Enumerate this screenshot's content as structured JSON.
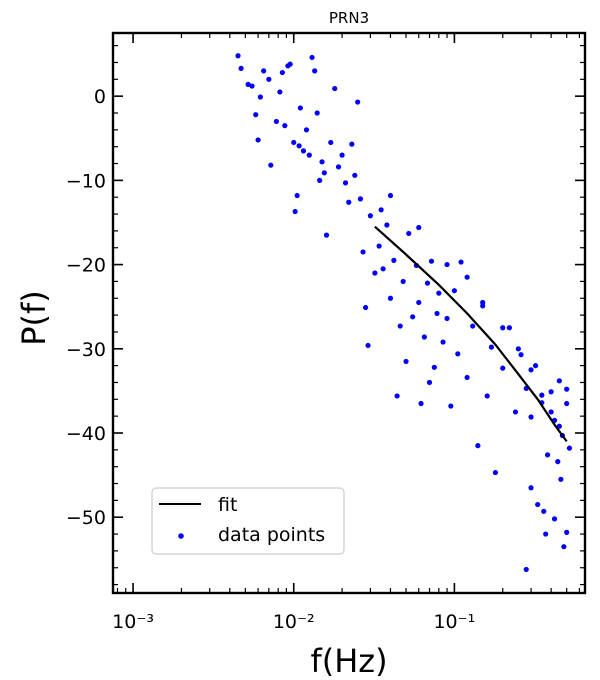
{
  "chart_data": {
    "type": "scatter",
    "title": "PRN3",
    "xlabel": "f(Hz)",
    "ylabel": "P(f)",
    "x_scale": "log",
    "xlim": [
      0.00075,
      0.65
    ],
    "ylim": [
      -59,
      7.5
    ],
    "x_ticks": [
      {
        "value": 0.001,
        "label": "10⁻³"
      },
      {
        "value": 0.01,
        "label": "10⁻²"
      },
      {
        "value": 0.1,
        "label": "10⁻¹"
      }
    ],
    "y_ticks": [
      {
        "value": 0,
        "label": "0"
      },
      {
        "value": -10,
        "label": "−10"
      },
      {
        "value": -20,
        "label": "−20"
      },
      {
        "value": -30,
        "label": "−30"
      },
      {
        "value": -40,
        "label": "−40"
      },
      {
        "value": -50,
        "label": "−50"
      }
    ],
    "legend": {
      "placement": "lower-left",
      "entries": [
        {
          "label": "fit",
          "kind": "line",
          "color": "#000000"
        },
        {
          "label": "data points",
          "kind": "marker",
          "color": "#0000ff"
        }
      ]
    },
    "series": [
      {
        "name": "fit",
        "kind": "line",
        "color": "#000000",
        "x": [
          0.032,
          0.05,
          0.08,
          0.12,
          0.18,
          0.25,
          0.33,
          0.42,
          0.5
        ],
        "y": [
          -15.5,
          -18.8,
          -22.4,
          -25.8,
          -29.5,
          -33.0,
          -36.0,
          -39.0,
          -41.0
        ]
      },
      {
        "name": "data points",
        "kind": "scatter",
        "color": "#0000ff",
        "x": [
          0.0045,
          0.0047,
          0.0052,
          0.0055,
          0.0058,
          0.006,
          0.0062,
          0.0065,
          0.007,
          0.0072,
          0.0078,
          0.0082,
          0.0085,
          0.0088,
          0.0092,
          0.0095,
          0.01,
          0.0102,
          0.0105,
          0.0108,
          0.011,
          0.0115,
          0.012,
          0.0125,
          0.013,
          0.0135,
          0.014,
          0.0145,
          0.015,
          0.0155,
          0.016,
          0.017,
          0.018,
          0.019,
          0.02,
          0.021,
          0.022,
          0.023,
          0.024,
          0.025,
          0.026,
          0.027,
          0.028,
          0.029,
          0.03,
          0.032,
          0.034,
          0.035,
          0.036,
          0.038,
          0.04,
          0.042,
          0.044,
          0.046,
          0.048,
          0.05,
          0.052,
          0.055,
          0.058,
          0.06,
          0.062,
          0.065,
          0.068,
          0.07,
          0.072,
          0.075,
          0.078,
          0.08,
          0.085,
          0.09,
          0.095,
          0.1,
          0.105,
          0.11,
          0.12,
          0.13,
          0.14,
          0.15,
          0.16,
          0.17,
          0.18,
          0.2,
          0.22,
          0.24,
          0.26,
          0.28,
          0.3,
          0.32,
          0.35,
          0.38,
          0.4,
          0.42,
          0.45,
          0.47,
          0.5,
          0.52,
          0.04,
          0.06,
          0.09,
          0.12,
          0.15,
          0.2,
          0.25,
          0.3,
          0.35,
          0.4,
          0.45,
          0.5,
          0.3,
          0.33,
          0.37,
          0.42,
          0.46,
          0.5,
          0.28,
          0.36,
          0.44,
          0.48
        ],
        "y": [
          4.8,
          3.3,
          1.4,
          1.2,
          -2.2,
          -5.2,
          -0.1,
          3.0,
          2.0,
          -8.2,
          -3.0,
          0.5,
          2.8,
          -3.5,
          3.6,
          3.8,
          -5.5,
          -13.7,
          -11.8,
          -5.9,
          -1.4,
          -6.5,
          -4.0,
          -7.0,
          4.6,
          3.0,
          -2.0,
          -10.0,
          -7.8,
          -9.1,
          -16.5,
          -5.5,
          0.9,
          -8.4,
          -7.0,
          -10.3,
          -12.6,
          -5.7,
          -9.4,
          -0.7,
          -12.2,
          -18.5,
          -25.1,
          -29.6,
          -14.2,
          -21.0,
          -17.8,
          -13.5,
          -20.5,
          -15.3,
          -24.0,
          -19.5,
          -35.6,
          -27.3,
          -22.0,
          -31.5,
          -16.3,
          -26.2,
          -20.1,
          -24.5,
          -36.5,
          -28.6,
          -22.2,
          -34.0,
          -19.6,
          -32.2,
          -25.8,
          -23.4,
          -29.2,
          -26.4,
          -36.8,
          -23.1,
          -30.6,
          -19.7,
          -33.4,
          -27.3,
          -41.5,
          -24.9,
          -35.6,
          -29.8,
          -44.7,
          -32.3,
          -27.5,
          -37.5,
          -30.7,
          -34.7,
          -38.1,
          -32.0,
          -36.4,
          -42.6,
          -35.1,
          -38.5,
          -33.8,
          -40.3,
          -36.5,
          -41.8,
          -11.8,
          -15.6,
          -20.0,
          -21.5,
          -24.5,
          -27.5,
          -30.0,
          -32.5,
          -35.5,
          -37.5,
          -39.2,
          -34.8,
          -46.5,
          -48.5,
          -52.0,
          -50.2,
          -45.5,
          -51.8,
          -56.2,
          -49.3,
          -43.4,
          -53.5
        ]
      }
    ]
  },
  "colors": {
    "background": "#ffffff",
    "axes": "#000000",
    "points": "#0000ff",
    "fit": "#000000",
    "legend_border": "#cccccc"
  }
}
